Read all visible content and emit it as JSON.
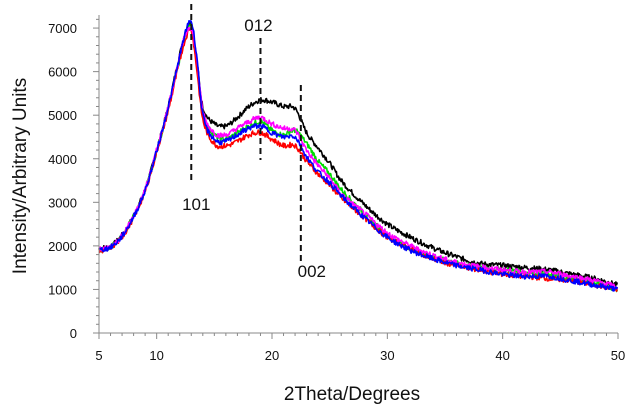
{
  "chart_data": {
    "type": "line",
    "title": "",
    "xlabel": "2Theta/Degrees",
    "ylabel": "Intensity/Arbitrary Units",
    "xlim": [
      5,
      50
    ],
    "ylim": [
      0,
      7300
    ],
    "x_ticks": [
      5,
      10,
      20,
      30,
      40,
      50
    ],
    "y_ticks": [
      0,
      1000,
      2000,
      3000,
      4000,
      5000,
      6000,
      7000
    ],
    "grid": false,
    "legend": "none",
    "annotations": [
      {
        "label": "101",
        "x": 13.0
      },
      {
        "label": "012",
        "x": 19.0
      },
      {
        "label": "002",
        "x": 22.5
      }
    ],
    "x": [
      5,
      6,
      7,
      8,
      9,
      10,
      11,
      12,
      12.5,
      13,
      13.5,
      14,
      15,
      16,
      17,
      18,
      19,
      20,
      21,
      22,
      23,
      24,
      25,
      26,
      28,
      30,
      32,
      34,
      36,
      38,
      40,
      42,
      44,
      46,
      48,
      50
    ],
    "series": [
      {
        "color": "#000000",
        "values": [
          1950,
          1990,
          2250,
          2700,
          3300,
          4200,
          5200,
          6400,
          6900,
          7100,
          6200,
          5200,
          4800,
          4750,
          4950,
          5200,
          5350,
          5300,
          5200,
          5150,
          4600,
          4250,
          3900,
          3500,
          2950,
          2500,
          2200,
          1950,
          1750,
          1600,
          1550,
          1500,
          1450,
          1350,
          1250,
          1100
        ]
      },
      {
        "color": "#00dd00",
        "values": [
          1900,
          1970,
          2230,
          2680,
          3280,
          4170,
          5150,
          6300,
          6800,
          7000,
          6100,
          5050,
          4550,
          4450,
          4600,
          4750,
          4850,
          4650,
          4550,
          4650,
          4350,
          3950,
          3650,
          3300,
          2750,
          2250,
          1950,
          1750,
          1600,
          1500,
          1450,
          1400,
          1350,
          1250,
          1150,
          1000
        ]
      },
      {
        "color": "#ff0000",
        "values": [
          1880,
          1960,
          2200,
          2650,
          3250,
          4150,
          5100,
          6250,
          6750,
          6950,
          6000,
          4900,
          4350,
          4300,
          4400,
          4550,
          4600,
          4450,
          4300,
          4300,
          3950,
          3650,
          3400,
          3100,
          2650,
          2200,
          1950,
          1700,
          1550,
          1450,
          1350,
          1300,
          1250,
          1200,
          1100,
          1000
        ]
      },
      {
        "color": "#ff00ff",
        "values": [
          1920,
          1990,
          2240,
          2690,
          3300,
          4200,
          5200,
          6350,
          6850,
          7000,
          6250,
          5100,
          4600,
          4550,
          4700,
          4850,
          4950,
          4800,
          4700,
          4650,
          4200,
          3850,
          3550,
          3200,
          2750,
          2300,
          2000,
          1780,
          1620,
          1520,
          1450,
          1400,
          1400,
          1300,
          1200,
          1050
        ]
      },
      {
        "color": "#0000ff",
        "values": [
          1900,
          1970,
          2220,
          2670,
          3270,
          4180,
          5180,
          6350,
          6900,
          7150,
          6300,
          5000,
          4450,
          4400,
          4550,
          4700,
          4750,
          4600,
          4500,
          4500,
          4050,
          3700,
          3450,
          3150,
          2650,
          2200,
          1900,
          1700,
          1550,
          1450,
          1350,
          1300,
          1300,
          1200,
          1100,
          1000
        ]
      }
    ]
  }
}
